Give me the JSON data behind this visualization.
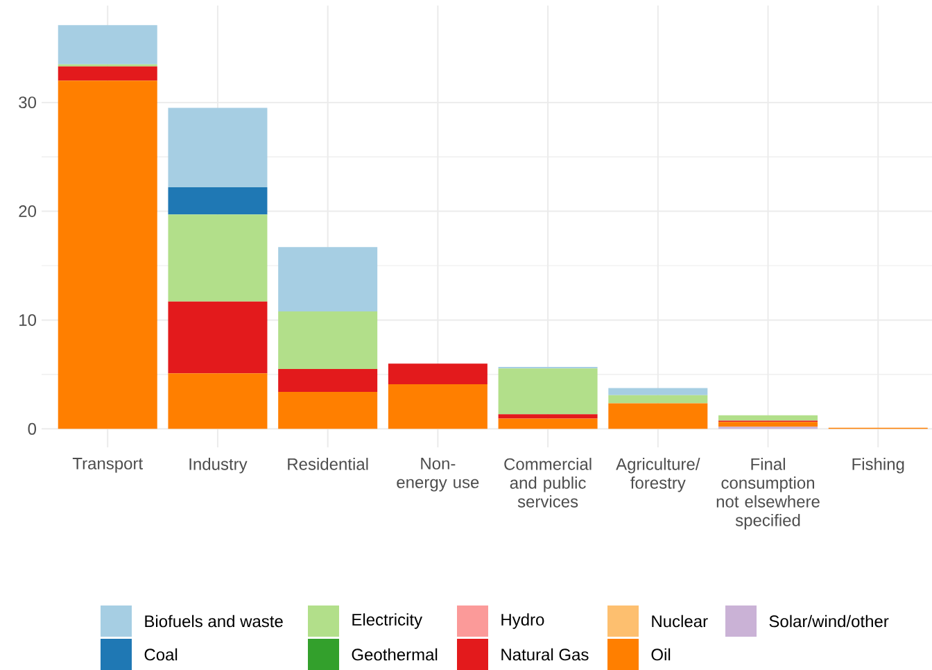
{
  "chart_data": {
    "type": "bar",
    "stacked": true,
    "categories": [
      "Transport",
      "Industry",
      "Residential",
      "Non-energy use",
      "Commercial and public services",
      "Agriculture/ forestry",
      "Final consumption not elsewhere specified",
      "Fishing"
    ],
    "series": [
      {
        "name": "Solar/wind/other",
        "color": "#cab2d6",
        "values": [
          0,
          0,
          0,
          0,
          0,
          0,
          0.2,
          0
        ]
      },
      {
        "name": "Oil",
        "color": "#ff7f00",
        "values": [
          32.0,
          5.1,
          3.4,
          4.1,
          0.95,
          2.35,
          0.45,
          0.1
        ]
      },
      {
        "name": "Nuclear",
        "color": "#fdbf6f",
        "values": [
          0,
          0,
          0,
          0,
          0,
          0,
          0,
          0
        ]
      },
      {
        "name": "Natural Gas",
        "color": "#e31a1c",
        "values": [
          1.3,
          6.6,
          2.1,
          1.9,
          0.4,
          0,
          0.1,
          0
        ]
      },
      {
        "name": "Hydro",
        "color": "#fb9a99",
        "values": [
          0,
          0,
          0,
          0,
          0,
          0,
          0,
          0
        ]
      },
      {
        "name": "Geothermal",
        "color": "#33a02c",
        "values": [
          0,
          0,
          0,
          0,
          0,
          0,
          0,
          0
        ]
      },
      {
        "name": "Electricity",
        "color": "#b2df8a",
        "values": [
          0.2,
          8.0,
          5.3,
          0,
          4.2,
          0.75,
          0.5,
          0
        ]
      },
      {
        "name": "Coal",
        "color": "#1f78b4",
        "values": [
          0,
          2.5,
          0,
          0,
          0,
          0,
          0,
          0
        ]
      },
      {
        "name": "Biofuels and waste",
        "color": "#a6cee3",
        "values": [
          3.6,
          7.3,
          5.9,
          0,
          0.15,
          0.65,
          0,
          0
        ]
      }
    ],
    "ylim": [
      -1.7,
      38.9
    ],
    "yticks": [
      0,
      10,
      20,
      30
    ],
    "grid": true,
    "legend": "bottom"
  }
}
